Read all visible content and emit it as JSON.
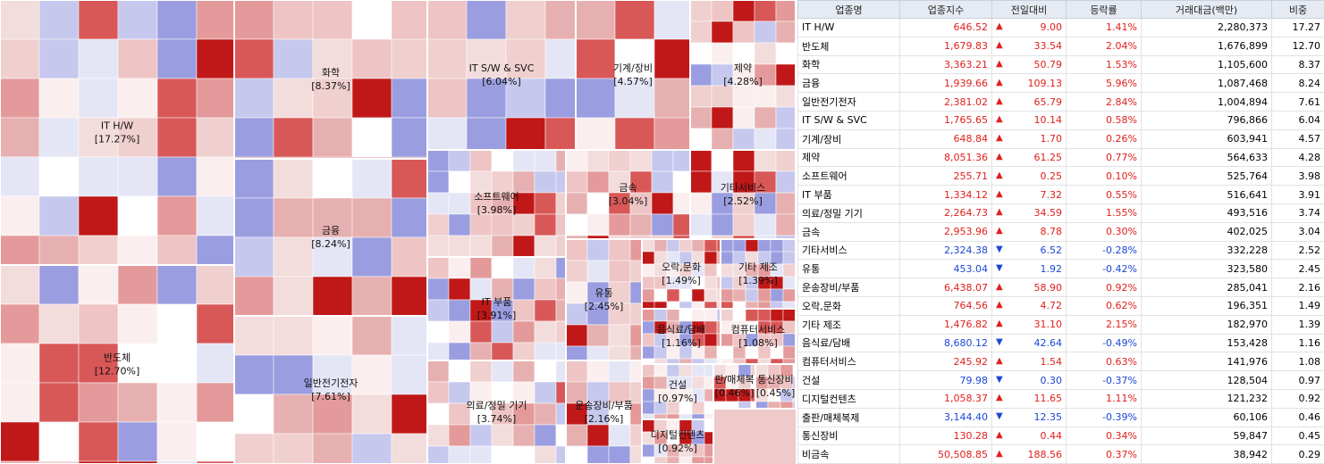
{
  "treemap": {
    "sectors": [
      {
        "name": "IT H/W",
        "share": "[17.27%]"
      },
      {
        "name": "반도체",
        "share": "[12.70%]"
      },
      {
        "name": "화학",
        "share": "[8.37%]"
      },
      {
        "name": "금융",
        "share": "[8.24%]"
      },
      {
        "name": "일반전기전자",
        "share": "[7.61%]"
      },
      {
        "name": "IT S/W & SVC",
        "share": "[6.04%]"
      },
      {
        "name": "기계/장비",
        "share": "[4.57%]"
      },
      {
        "name": "제약",
        "share": "[4.28%]"
      },
      {
        "name": "소프트웨어",
        "share": "[3.98%]"
      },
      {
        "name": "금속",
        "share": "[3.04%]"
      },
      {
        "name": "기타서비스",
        "share": "[2.52%]"
      },
      {
        "name": "IT 부품",
        "share": "[3.91%]"
      },
      {
        "name": "의료/정밀 기기",
        "share": "[3.74%]"
      },
      {
        "name": "유통",
        "share": "[2.45%]"
      },
      {
        "name": "오락,문화",
        "share": "[1.49%]"
      },
      {
        "name": "기타 제조",
        "share": "[1.39%]"
      },
      {
        "name": "음식료/담배",
        "share": "[1.16%]"
      },
      {
        "name": "컴퓨터서비스",
        "share": "[1.08%]"
      },
      {
        "name": "운송장비/부품",
        "share": "[2.16%]"
      },
      {
        "name": "건설",
        "share": "[0.97%]"
      },
      {
        "name": "디지털컨텐츠",
        "share": "[0.92%]"
      },
      {
        "name": "판/매체복",
        "share": "[0.46%]"
      },
      {
        "name": "통신장비",
        "share": "[0.45%]"
      }
    ]
  },
  "table": {
    "columns": [
      "업종명",
      "업종지수",
      "전일대비",
      "등락률",
      "거래대금(백만)",
      "비중"
    ],
    "rows": [
      [
        "IT H/W",
        "646.52",
        "9.00",
        "1.41%",
        "2,280,373",
        "17.27"
      ],
      [
        "반도체",
        "1,679.83",
        "33.54",
        "2.04%",
        "1,676,899",
        "12.70"
      ],
      [
        "화학",
        "3,363.21",
        "50.79",
        "1.53%",
        "1,105,600",
        "8.37"
      ],
      [
        "금융",
        "1,939.66",
        "109.13",
        "5.96%",
        "1,087,468",
        "8.24"
      ],
      [
        "일반전기전자",
        "2,381.02",
        "65.79",
        "2.84%",
        "1,004,894",
        "7.61"
      ],
      [
        "IT S/W & SVC",
        "1,765.65",
        "10.14",
        "0.58%",
        "796,866",
        "6.04"
      ],
      [
        "기계/장비",
        "648.84",
        "1.70",
        "0.26%",
        "603,941",
        "4.57"
      ],
      [
        "제약",
        "8,051.36",
        "61.25",
        "0.77%",
        "564,633",
        "4.28"
      ],
      [
        "소프트웨어",
        "255.71",
        "0.25",
        "0.10%",
        "525,764",
        "3.98"
      ],
      [
        "IT 부품",
        "1,334.12",
        "7.32",
        "0.55%",
        "516,641",
        "3.91"
      ],
      [
        "의료/정밀 기기",
        "2,264.73",
        "34.59",
        "1.55%",
        "493,516",
        "3.74"
      ],
      [
        "금속",
        "2,953.96",
        "8.78",
        "0.30%",
        "402,025",
        "3.04"
      ],
      [
        "기타서비스",
        "2,324.38",
        "6.52",
        "-0.28%",
        "332,228",
        "2.52"
      ],
      [
        "유통",
        "453.04",
        "1.92",
        "-0.42%",
        "323,580",
        "2.45"
      ],
      [
        "운송장비/부품",
        "6,438.07",
        "58.90",
        "0.92%",
        "285,041",
        "2.16"
      ],
      [
        "오락,문화",
        "764.56",
        "4.72",
        "0.62%",
        "196,351",
        "1.49"
      ],
      [
        "기타 제조",
        "1,476.82",
        "31.10",
        "2.15%",
        "182,970",
        "1.39"
      ],
      [
        "음식료/담배",
        "8,680.12",
        "42.64",
        "-0.49%",
        "153,428",
        "1.16"
      ],
      [
        "컴퓨터서비스",
        "245.92",
        "1.54",
        "0.63%",
        "141,976",
        "1.08"
      ],
      [
        "건설",
        "79.98",
        "0.30",
        "-0.37%",
        "128,504",
        "0.97"
      ],
      [
        "디지털컨텐츠",
        "1,058.37",
        "11.65",
        "1.11%",
        "121,232",
        "0.92"
      ],
      [
        "출판/매체복제",
        "3,144.40",
        "12.35",
        "-0.39%",
        "60,106",
        "0.46"
      ],
      [
        "통신장비",
        "130.28",
        "0.44",
        "0.34%",
        "59,847",
        "0.45"
      ],
      [
        "비금속",
        "50,508.85",
        "188.56",
        "0.37%",
        "38,942",
        "0.29"
      ]
    ]
  }
}
